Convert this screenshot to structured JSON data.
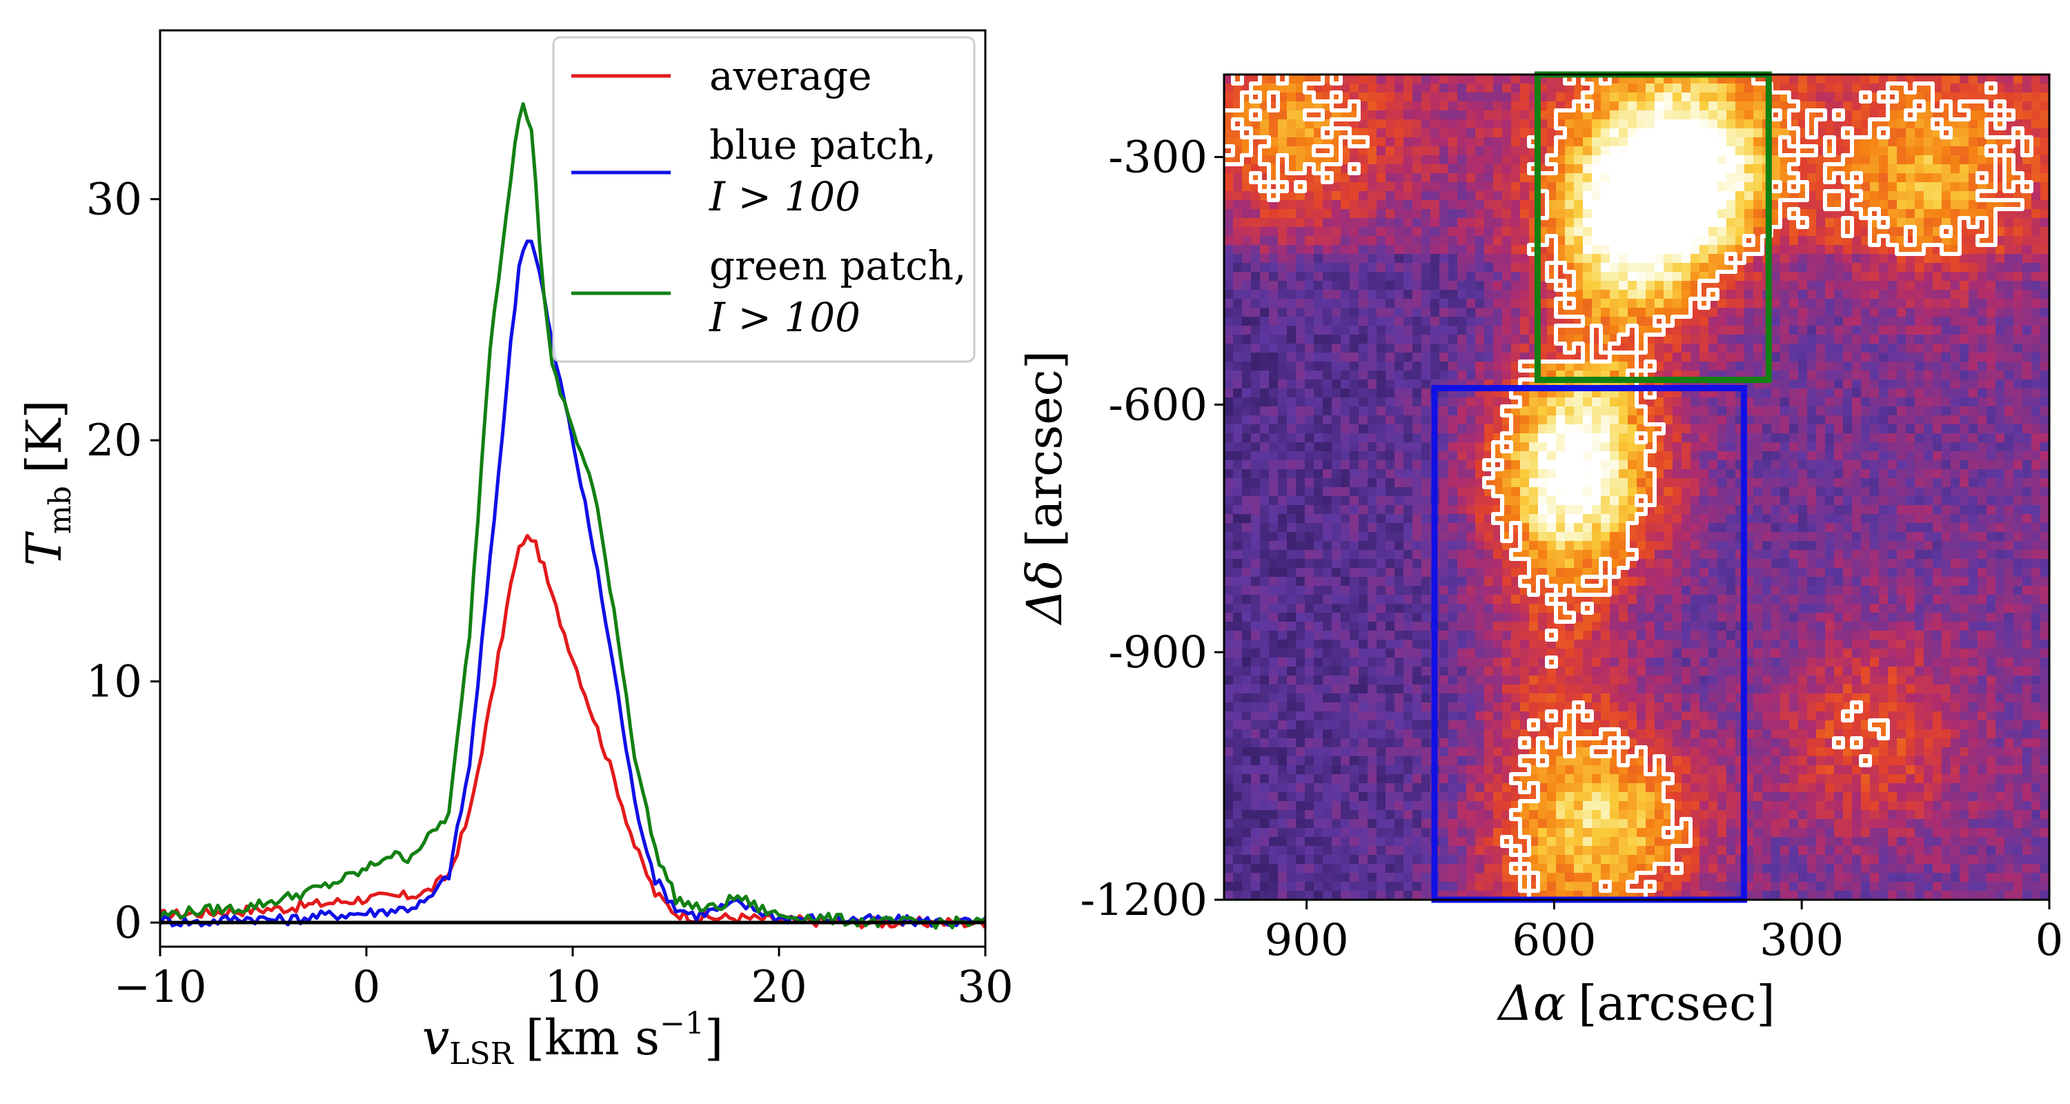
{
  "chart_data": [
    {
      "type": "line",
      "panel": "left",
      "xlabel_main": "v",
      "xlabel_sub": "LSR",
      "xlabel_unit": "[km s",
      "xlabel_sup": "−1",
      "xlabel_close": "]",
      "ylabel_main": "T",
      "ylabel_sub": "mb",
      "ylabel_unit": "[K]",
      "xlim": [
        -10,
        30
      ],
      "ylim": [
        -1,
        37
      ],
      "xticks": [
        -10,
        0,
        10,
        20,
        30
      ],
      "xtick_labels": [
        "−10",
        "0",
        "10",
        "20",
        "30"
      ],
      "yticks": [
        0,
        10,
        20,
        30
      ],
      "ytick_labels": [
        "0",
        "10",
        "20",
        "30"
      ],
      "baseline_y": 0,
      "legend_position": "top-right",
      "series": [
        {
          "name": "average",
          "legend_lines": [
            "average"
          ],
          "color": "#e31a1c",
          "x": [
            -10,
            -8,
            -6,
            -4,
            -2,
            0,
            2,
            3,
            4,
            5,
            6,
            7,
            7.5,
            8,
            8.5,
            9,
            10,
            11,
            12,
            13,
            14,
            15,
            16,
            18,
            20,
            25,
            30
          ],
          "y": [
            0.3,
            0.4,
            0.5,
            0.6,
            0.8,
            1.0,
            1.1,
            1.3,
            2.0,
            4.5,
            9.0,
            14.0,
            15.8,
            16.0,
            15.0,
            13.5,
            11.0,
            8.5,
            6.0,
            3.2,
            1.2,
            0.4,
            0.2,
            0.2,
            0.1,
            0.0,
            0.0
          ]
        },
        {
          "name": "blue patch",
          "legend_lines": [
            "blue patch,",
            "I > 100"
          ],
          "color": "#1010e6",
          "x": [
            -10,
            -8,
            -6,
            -4,
            -2,
            0,
            2,
            3,
            4,
            5,
            6,
            7,
            7.5,
            8,
            8.5,
            9,
            10,
            11,
            12,
            13,
            14,
            15,
            16,
            18,
            20,
            25,
            30
          ],
          "y": [
            0.1,
            0.0,
            0.2,
            0.1,
            0.3,
            0.4,
            0.6,
            0.9,
            2.0,
            6.5,
            15.0,
            24.0,
            28.0,
            28.4,
            26.5,
            24.0,
            20.0,
            15.5,
            10.5,
            5.0,
            1.8,
            0.6,
            0.3,
            0.8,
            0.2,
            0.1,
            0.0
          ]
        },
        {
          "name": "green patch",
          "legend_lines": [
            "green patch,",
            "I > 100"
          ],
          "color": "#128012",
          "x": [
            -10,
            -8,
            -6,
            -4,
            -2,
            0,
            1,
            2,
            3,
            4,
            5,
            6,
            7,
            7.5,
            8,
            8.5,
            9,
            10,
            11,
            12,
            13,
            14,
            15,
            16,
            17,
            18,
            19,
            20,
            25,
            30
          ],
          "y": [
            0.3,
            0.5,
            0.6,
            1.0,
            1.5,
            2.2,
            2.8,
            2.7,
            3.5,
            4.5,
            12.0,
            24.0,
            31.0,
            34.0,
            33.0,
            27.0,
            23.0,
            20.5,
            18.0,
            13.0,
            7.0,
            3.0,
            1.0,
            0.6,
            0.6,
            1.1,
            0.6,
            0.3,
            0.0,
            0.0
          ]
        }
      ]
    },
    {
      "type": "heatmap",
      "panel": "right",
      "xlabel_main": "Δα",
      "xlabel_unit": "[arcsec]",
      "ylabel_main": "Δδ",
      "ylabel_unit": "[arcsec]",
      "xlim": [
        1000,
        0
      ],
      "ylim": [
        -1200,
        -200
      ],
      "xticks": [
        900,
        600,
        300,
        0
      ],
      "xtick_labels": [
        "900",
        "600",
        "300",
        "0"
      ],
      "yticks": [
        -300,
        -600,
        -900,
        -1200
      ],
      "ytick_labels": [
        "-300",
        "-600",
        "-900",
        "-1200"
      ],
      "colormap": "CMRmap-like (black → purple → red → orange → yellow → white)",
      "contour_color": "#ffffff",
      "regions": [
        {
          "name": "green patch",
          "color": "#128012",
          "x_range": [
            340,
            620
          ],
          "y_range": [
            -570,
            -200
          ]
        },
        {
          "name": "blue patch",
          "color": "#1010e6",
          "x_range": [
            370,
            745
          ],
          "y_range": [
            -1200,
            -580
          ]
        }
      ],
      "bright_features": [
        {
          "x": 500,
          "y": -400,
          "level": 1.0
        },
        {
          "x": 430,
          "y": -300,
          "level": 0.85
        },
        {
          "x": 575,
          "y": -680,
          "level": 0.95
        },
        {
          "x": 520,
          "y": -1110,
          "level": 0.8
        },
        {
          "x": 920,
          "y": -270,
          "level": 0.55
        },
        {
          "x": 150,
          "y": -340,
          "level": 0.55
        },
        {
          "x": 220,
          "y": -1000,
          "level": 0.45
        }
      ]
    }
  ]
}
